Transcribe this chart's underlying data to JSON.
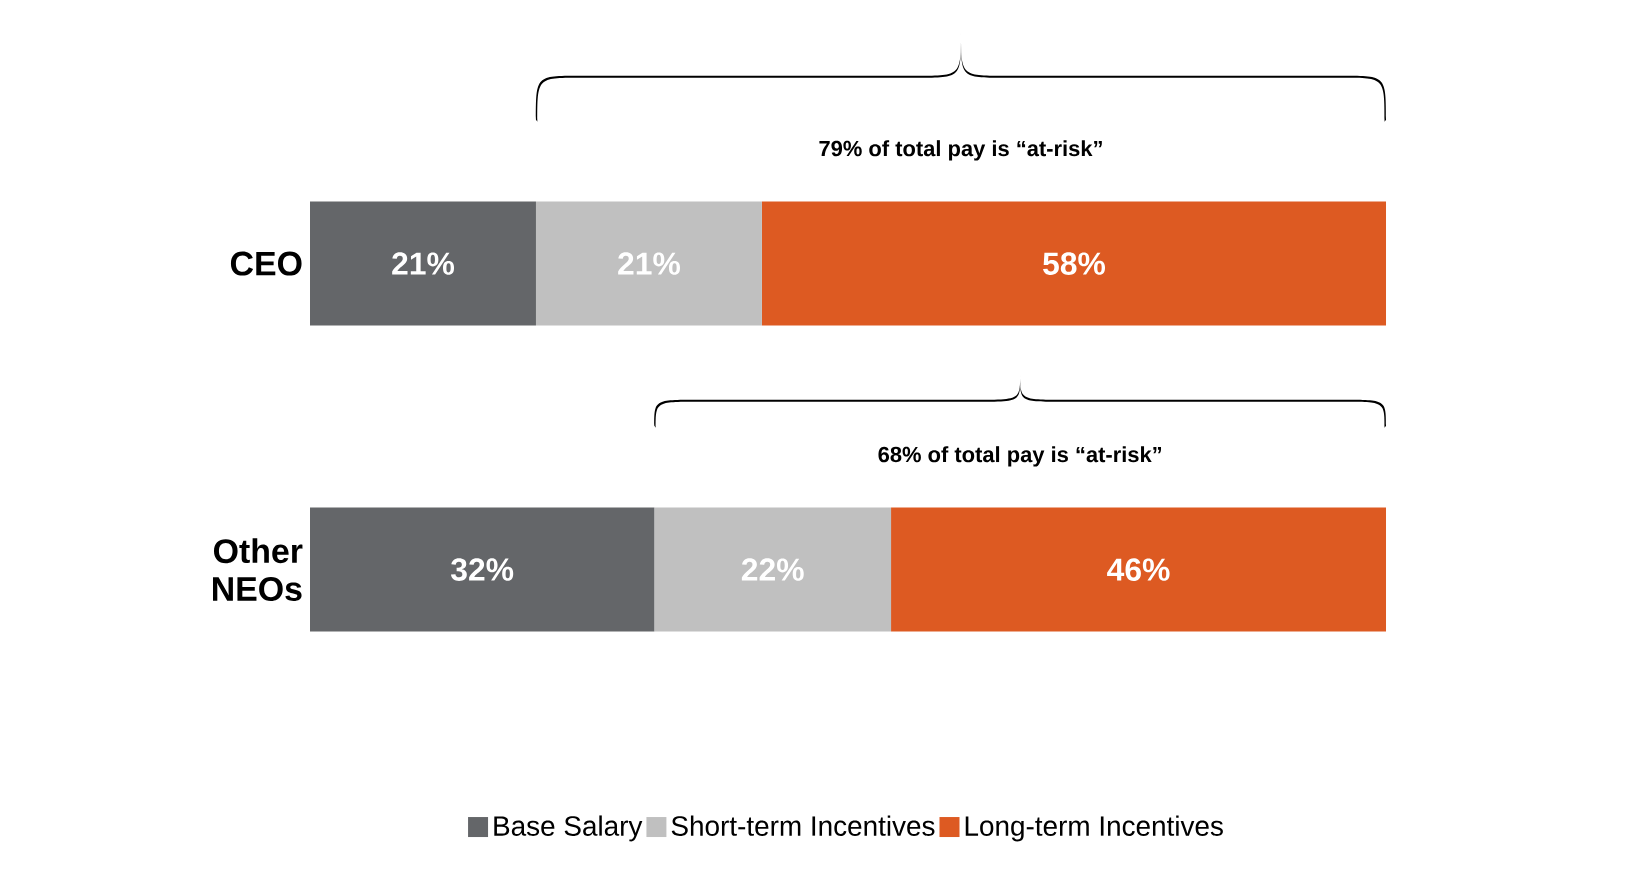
{
  "chart_data": {
    "type": "bar",
    "orientation": "horizontal",
    "stacked": true,
    "legend": "bottom",
    "categories": [
      "CEO",
      "Other NEOs"
    ],
    "series": [
      {
        "name": "Base Salary",
        "color": "#646669",
        "values": [
          21,
          32
        ],
        "value_labels": [
          "21%",
          "32%"
        ]
      },
      {
        "name": "Short-term Incentives",
        "color": "#c0c0c0",
        "values": [
          21,
          22
        ],
        "value_labels": [
          "21%",
          "22%"
        ]
      },
      {
        "name": "Long-term Incentives",
        "color": "#dd5a22",
        "values": [
          58,
          46
        ],
        "value_labels": [
          "58%",
          "46%"
        ]
      }
    ],
    "annotations": [
      "79% of total pay is “at-risk”",
      "68% of total pay is “at-risk”"
    ]
  }
}
